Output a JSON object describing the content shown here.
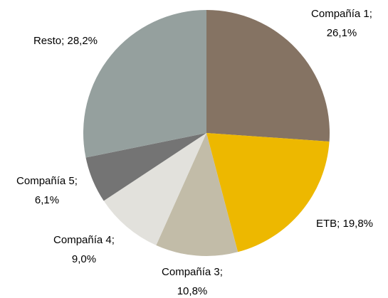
{
  "chart_data": {
    "type": "pie",
    "categories": [
      "Compañía 1",
      "ETB",
      "Compañía 3",
      "Compañía 4",
      "Compañía 5",
      "Resto"
    ],
    "values": [
      26.1,
      19.8,
      10.8,
      9.0,
      6.1,
      28.2
    ],
    "value_labels": [
      "Compañía 1; 26,1%",
      "ETB; 19,8%",
      "Compañía 3; 10,8%",
      "Compañía 4; 9,0%",
      "Compañía 5; 6,1%",
      "Resto; 28,2%"
    ],
    "colors": [
      "#857363",
      "#edb800",
      "#c2bca8",
      "#e2e1dc",
      "#747474",
      "#95a09e"
    ]
  }
}
